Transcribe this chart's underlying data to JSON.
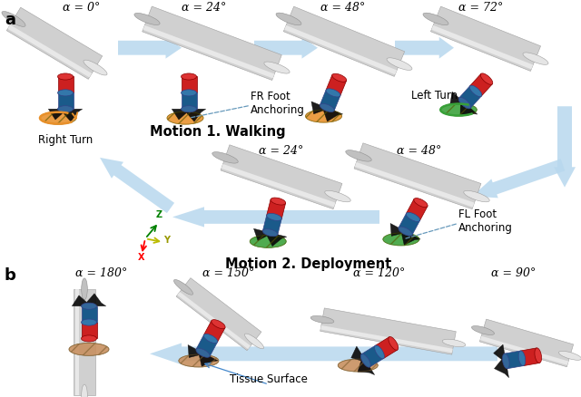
{
  "fig_width": 6.4,
  "fig_height": 4.38,
  "bg_color": "#ffffff",
  "panel_a_label": "a",
  "panel_b_label": "b",
  "motion1_title": "Motion 1. Walking",
  "motion2_title": "Motion 2. Deployment",
  "alpha_labels_top": [
    "α = 0°",
    "α = 24°",
    "α = 48°",
    "α = 72°"
  ],
  "alpha_labels_mid": [
    "α = 24°",
    "α = 48°"
  ],
  "alpha_labels_bot": [
    "α = 180°",
    "α = 150°",
    "α = 120°",
    "α = 90°"
  ],
  "right_turn_label": "Right Turn",
  "left_turn_label": "Left Turn",
  "fr_foot_label": "FR Foot\nAnchoring",
  "fl_foot_label": "FL Foot\nAnchoring",
  "tissue_label": "Tissue Surface",
  "arrow_color": "#b8d8ee",
  "robot_red": "#cc2020",
  "robot_blue": "#1a5a8a",
  "robot_dark": "#0a0a0a",
  "foot_orange": "#e8902a",
  "foot_green": "#38a038",
  "foot_tissue": "#c89060"
}
